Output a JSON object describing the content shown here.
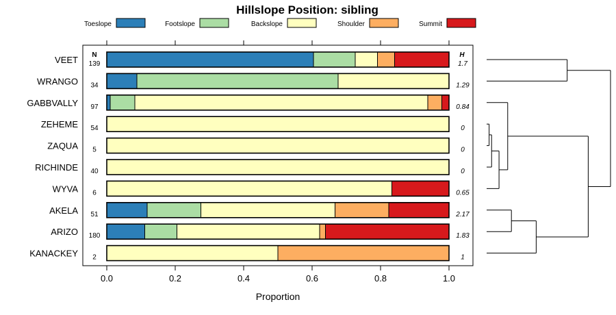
{
  "chart_data": {
    "type": "bar",
    "orientation": "horizontal",
    "stacked": true,
    "title": "Hillslope Position: sibling",
    "xlabel": "Proportion",
    "ylabel": "",
    "xlim": [
      0,
      1
    ],
    "xticks": [
      "0.0",
      "0.2",
      "0.4",
      "0.6",
      "0.8",
      "1.0"
    ],
    "xtick_values": [
      0,
      0.2,
      0.4,
      0.6,
      0.8,
      1.0
    ],
    "grid": false,
    "legend_position": "top",
    "n_header": "N",
    "h_header": "H",
    "categories": [
      "VEET",
      "WRANGO",
      "GABBVALLY",
      "ZEHEME",
      "ZAQUA",
      "RICHINDE",
      "WYVA",
      "AKELA",
      "ARIZO",
      "KANACKEY"
    ],
    "n_values": [
      "139",
      "34",
      "97",
      "54",
      "5",
      "40",
      "6",
      "51",
      "180",
      "2"
    ],
    "h_values": [
      "1.7",
      "1.29",
      "0.84",
      "0",
      "0",
      "0",
      "0.65",
      "2.17",
      "1.83",
      "1"
    ],
    "series": [
      {
        "name": "Toeslope",
        "color": "#2c7fb8",
        "values": [
          0.604,
          0.088,
          0.01,
          0,
          0,
          0,
          0,
          0.118,
          0.111,
          0
        ]
      },
      {
        "name": "Footslope",
        "color": "#abdda4",
        "values": [
          0.122,
          0.588,
          0.072,
          0,
          0,
          0,
          0,
          0.157,
          0.094,
          0
        ]
      },
      {
        "name": "Backslope",
        "color": "#ffffbf",
        "values": [
          0.065,
          0.324,
          0.856,
          1,
          1,
          1,
          0.833,
          0.392,
          0.417,
          0.5
        ]
      },
      {
        "name": "Shoulder",
        "color": "#fdae61",
        "values": [
          0.05,
          0,
          0.041,
          0,
          0,
          0,
          0,
          0.157,
          0.017,
          0.5
        ]
      },
      {
        "name": "Summit",
        "color": "#d7191c",
        "values": [
          0.159,
          0,
          0.021,
          0,
          0,
          0,
          0.167,
          0.176,
          0.361,
          0
        ]
      }
    ],
    "dendrogram": {
      "leaves": [
        "VEET",
        "WRANGO",
        "GABBVALLY",
        "ZEHEME",
        "ZAQUA",
        "RICHINDE",
        "WYVA",
        "AKELA",
        "ARIZO",
        "KANACKEY"
      ],
      "merges": [
        {
          "a": "ZEHEME",
          "b": "ZAQUA",
          "height": 0.02
        },
        {
          "a": "c1",
          "b": "RICHINDE",
          "height": 0.04
        },
        {
          "a": "c2",
          "b": "WYVA",
          "height": 0.1
        },
        {
          "a": "GABBVALLY",
          "b": "c3",
          "height": 0.17
        },
        {
          "a": "AKELA",
          "b": "ARIZO",
          "height": 0.2
        },
        {
          "a": "c5",
          "b": "KANACKEY",
          "height": 0.4
        },
        {
          "a": "VEET",
          "b": "WRANGO",
          "height": 0.65
        },
        {
          "a": "c4",
          "b": "c6",
          "height": 0.82
        },
        {
          "a": "c7",
          "b": "c8",
          "height": 1.0
        }
      ]
    }
  }
}
